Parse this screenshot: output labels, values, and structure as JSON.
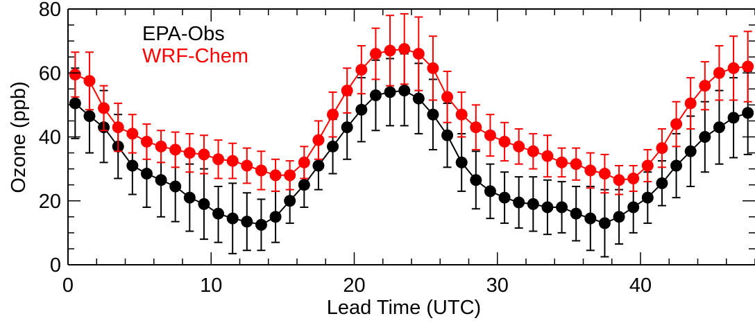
{
  "chart_data": {
    "type": "line",
    "title": "",
    "xlabel": "Lead Time (UTC)",
    "ylabel": "Ozone (ppb)",
    "xlim": [
      0,
      48
    ],
    "ylim": [
      0,
      80
    ],
    "x_ticks": [
      0,
      10,
      20,
      30,
      40
    ],
    "y_ticks": [
      0,
      20,
      40,
      60,
      80
    ],
    "grid": false,
    "legend_position": "top-left",
    "x": [
      0.5,
      1.5,
      2.5,
      3.5,
      4.5,
      5.5,
      6.5,
      7.5,
      8.5,
      9.5,
      10.5,
      11.5,
      12.5,
      13.5,
      14.5,
      15.5,
      16.5,
      17.5,
      18.5,
      19.5,
      20.5,
      21.5,
      22.5,
      23.5,
      24.5,
      25.5,
      26.5,
      27.5,
      28.5,
      29.5,
      30.5,
      31.5,
      32.5,
      33.5,
      34.5,
      35.5,
      36.5,
      37.5,
      38.5,
      39.5,
      40.5,
      41.5,
      42.5,
      43.5,
      44.5,
      45.5,
      46.5,
      47.5
    ],
    "series": [
      {
        "name": "EPA-Obs",
        "color": "#000000",
        "values": [
          50.5,
          46.5,
          43,
          37,
          31,
          28.5,
          26.5,
          24.5,
          21,
          19,
          16,
          14.5,
          13.5,
          12.5,
          15,
          20,
          25,
          31,
          37,
          43,
          48.5,
          53,
          54,
          54.5,
          52,
          47,
          40.5,
          32,
          26.5,
          23,
          21,
          19.5,
          19,
          18,
          18,
          16,
          14.5,
          13,
          15,
          18,
          21,
          25.5,
          31,
          35.5,
          40,
          43,
          46,
          47.5
        ],
        "err_lo": [
          11,
          11.5,
          11,
          10,
          9,
          10.5,
          11.5,
          11,
          10.5,
          11,
          9,
          11,
          9,
          8,
          8,
          7,
          7,
          7.5,
          8.5,
          10,
          10,
          11,
          10.5,
          11,
          11,
          11,
          10,
          9,
          9,
          8.5,
          8,
          8,
          8.5,
          8.5,
          8,
          8.5,
          10,
          10.5,
          8.5,
          8,
          8,
          7,
          10,
          11,
          11,
          11.5,
          12.5,
          13
        ],
        "err_hi": [
          11,
          11.5,
          11.5,
          10,
          9,
          10.5,
          11.5,
          11,
          10.5,
          11,
          8.5,
          11,
          9,
          8,
          8,
          7,
          7,
          7.5,
          8.5,
          10,
          10,
          11,
          10.5,
          11.5,
          11,
          11,
          10,
          9,
          9,
          8.5,
          8,
          8,
          8.5,
          8.5,
          8,
          8.5,
          10,
          10.5,
          8.5,
          8,
          8,
          7,
          10,
          11,
          11,
          11.5,
          12.5,
          13
        ]
      },
      {
        "name": "WRF-Chem",
        "color": "#ff0000",
        "values": [
          59.5,
          57.5,
          49,
          43,
          41,
          38.5,
          37,
          36,
          35,
          34.5,
          33,
          32.5,
          31,
          29.5,
          28,
          28,
          32,
          39,
          47,
          54.5,
          61,
          66,
          67,
          67.5,
          66,
          61.5,
          52.5,
          47,
          43,
          40.5,
          38.5,
          37,
          35.5,
          34,
          32,
          31.5,
          29.5,
          28.5,
          26.5,
          27,
          31,
          36.5,
          44,
          50.5,
          56,
          60,
          61.5,
          62
        ],
        "err_lo": [
          7,
          9,
          7,
          7.5,
          6,
          5.5,
          5,
          5.5,
          6,
          6,
          6,
          5.5,
          5.5,
          6,
          5,
          4.5,
          5,
          6,
          7,
          7,
          7.5,
          8,
          11,
          11,
          11.5,
          10,
          8,
          7,
          7,
          6.5,
          6,
          5.5,
          5.5,
          6.5,
          4.5,
          5,
          5.5,
          6,
          4.5,
          4,
          5,
          6,
          7,
          8,
          7.5,
          8.5,
          10,
          11
        ],
        "err_hi": [
          7,
          9,
          7,
          7.5,
          6,
          5.5,
          5,
          5.5,
          6,
          6,
          6,
          5.5,
          5.5,
          6,
          5,
          4.5,
          5,
          6,
          7,
          7,
          7.5,
          8,
          11,
          11,
          11.5,
          10,
          8,
          7,
          7,
          6.5,
          6,
          5.5,
          5.5,
          6.5,
          4.5,
          5,
          5.5,
          6,
          4.5,
          4,
          5,
          6,
          7,
          8,
          7.5,
          8.5,
          10,
          11
        ]
      }
    ]
  }
}
